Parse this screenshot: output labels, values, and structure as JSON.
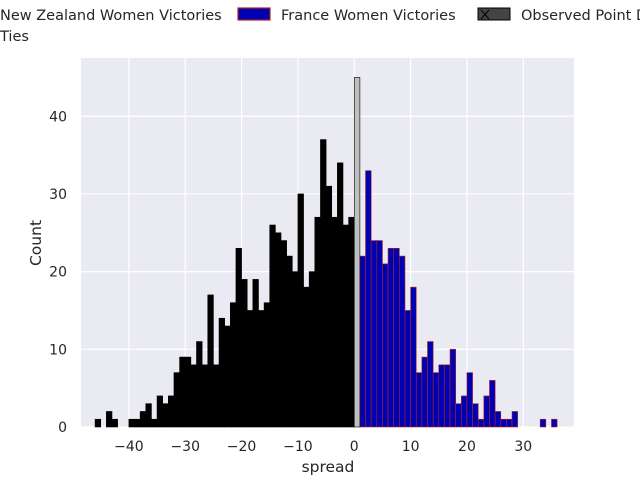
{
  "chart_data": {
    "type": "bar",
    "title": "",
    "xlabel": "spread",
    "ylabel": "Count",
    "xlim": [
      -48.5,
      39
    ],
    "ylim": [
      0,
      47.5
    ],
    "x_ticks": [
      -40,
      -30,
      -20,
      -10,
      0,
      10,
      20,
      30
    ],
    "x_tick_labels": [
      "−40",
      "−30",
      "−20",
      "−10",
      "0",
      "10",
      "20",
      "30"
    ],
    "y_ticks": [
      0,
      10,
      20,
      30,
      40
    ],
    "y_tick_labels": [
      "0",
      "10",
      "20",
      "30",
      "40"
    ],
    "grid": true,
    "legend_position": "top, above plot",
    "legend": [
      {
        "label": "New Zealand Women Victories",
        "color": "#000000",
        "edge": "#000000"
      },
      {
        "label": "France Women Victories",
        "color": "#0000b3",
        "edge": "#b22222"
      },
      {
        "label": "Observed Point D",
        "color": "#444444",
        "edge": "#000000"
      },
      {
        "label": "Ties",
        "color": "#bfbfbf",
        "edge": "#000000"
      }
    ],
    "bin_width": 1,
    "series": [
      {
        "name": "New Zealand Women Victories",
        "color": "#000000",
        "edge": "#000000",
        "bin_starts": [
          -46,
          -45,
          -44,
          -43,
          -42,
          -41,
          -40,
          -39,
          -38,
          -37,
          -36,
          -35,
          -34,
          -33,
          -32,
          -31,
          -30,
          -29,
          -28,
          -27,
          -26,
          -25,
          -24,
          -23,
          -22,
          -21,
          -20,
          -19,
          -18,
          -17,
          -16,
          -15,
          -14,
          -13,
          -12,
          -11,
          -10,
          -9,
          -8,
          -7,
          -6,
          -5,
          -4,
          -3,
          -2,
          -1
        ],
        "values": [
          1,
          0,
          2,
          1,
          0,
          0,
          1,
          1,
          2,
          3,
          1,
          4,
          3,
          4,
          7,
          9,
          9,
          8,
          11,
          8,
          17,
          8,
          14,
          13,
          16,
          23,
          19,
          15,
          19,
          15,
          16,
          26,
          25,
          24,
          22,
          20,
          30,
          18,
          20,
          27,
          37,
          31,
          27,
          34,
          26,
          27
        ]
      },
      {
        "name": "France Women Victories",
        "color": "#0000b3",
        "edge": "#b22222",
        "bin_starts": [
          1,
          2,
          3,
          4,
          5,
          6,
          7,
          8,
          9,
          10,
          11,
          12,
          13,
          14,
          15,
          16,
          17,
          18,
          19,
          20,
          21,
          22,
          23,
          24,
          25,
          26,
          27,
          28,
          29,
          30,
          31,
          32,
          33,
          34,
          35
        ],
        "values": [
          22,
          33,
          24,
          24,
          21,
          23,
          23,
          22,
          15,
          18,
          7,
          9,
          11,
          7,
          8,
          8,
          10,
          3,
          4,
          7,
          3,
          1,
          4,
          6,
          2,
          1,
          1,
          2,
          0,
          0,
          0,
          0,
          1,
          0,
          1
        ]
      },
      {
        "name": "Ties",
        "color": "#bfbfbf",
        "edge": "#000000",
        "bin_starts": [
          0
        ],
        "values": [
          45
        ]
      }
    ]
  }
}
